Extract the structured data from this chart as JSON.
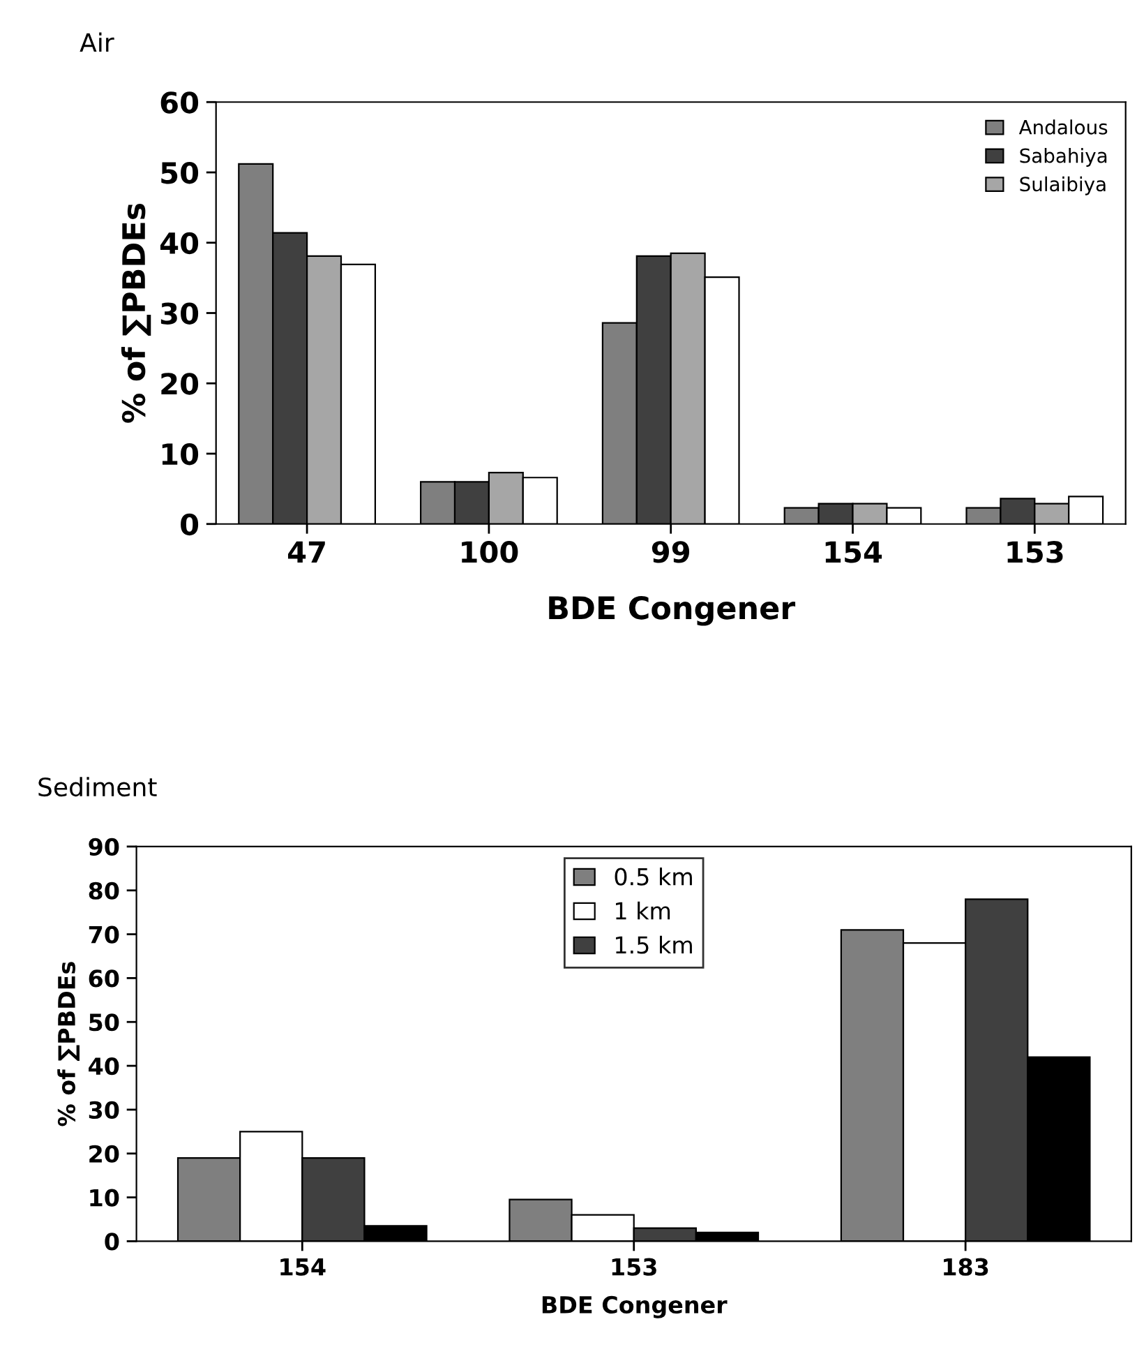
{
  "chart_data": [
    {
      "type": "bar",
      "title": "Air",
      "xlabel": "BDE Congener",
      "ylabel": "% of ∑PBDEs",
      "categories": [
        "47",
        "100",
        "99",
        "154",
        "153"
      ],
      "series": [
        {
          "name": "Andalous",
          "color": "#7f7f7f",
          "values": [
            51.2,
            6.0,
            28.6,
            2.3,
            2.3
          ]
        },
        {
          "name": "Sabahiya",
          "color": "#404040",
          "values": [
            41.4,
            6.0,
            38.1,
            2.9,
            3.6
          ]
        },
        {
          "name": "Sulaibiya",
          "color": "#a6a6a6",
          "values": [
            38.1,
            7.3,
            38.5,
            2.9,
            2.9
          ]
        },
        {
          "color": "#ffffff",
          "values": [
            36.9,
            6.6,
            35.1,
            2.3,
            3.9
          ]
        }
      ],
      "ylim": [
        0,
        60
      ],
      "yticks": [
        0,
        10,
        20,
        30,
        40,
        50,
        60
      ],
      "grid": false,
      "legend": "top right"
    },
    {
      "type": "bar",
      "title": "Sediment",
      "xlabel": "BDE Congener",
      "ylabel": "% of ∑PBDEs",
      "categories": [
        "154",
        "153",
        "183"
      ],
      "series": [
        {
          "name": "0.5 km",
          "color": "#7f7f7f",
          "values": [
            19,
            9.5,
            71
          ]
        },
        {
          "name": "1 km",
          "color": "#ffffff",
          "values": [
            25,
            6,
            68
          ]
        },
        {
          "name": "1.5 km",
          "color": "#404040",
          "values": [
            19,
            3,
            78
          ]
        },
        {
          "color": "#000000",
          "values": [
            3.5,
            2,
            42
          ]
        }
      ],
      "ylim": [
        0,
        90
      ],
      "yticks": [
        0,
        10,
        20,
        30,
        40,
        50,
        60,
        70,
        80,
        90
      ],
      "grid": false,
      "legend": "top"
    }
  ]
}
